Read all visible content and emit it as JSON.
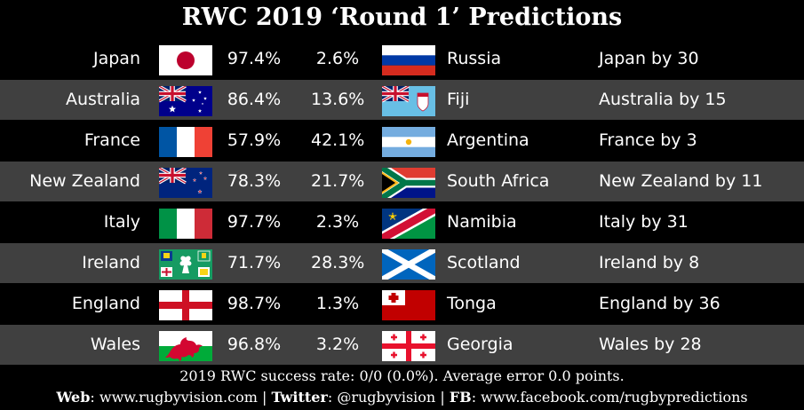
{
  "title": "RWC 2019 ‘Round 1’ Predictions",
  "matches": [
    {
      "home": "Japan",
      "home_flag": "japan-flag",
      "home_pct": "97.4%",
      "away_pct": "2.6%",
      "away": "Russia",
      "away_flag": "russia-flag",
      "prediction": "Japan by 30"
    },
    {
      "home": "Australia",
      "home_flag": "australia-flag",
      "home_pct": "86.4%",
      "away_pct": "13.6%",
      "away": "Fiji",
      "away_flag": "fiji-flag",
      "prediction": "Australia by 15"
    },
    {
      "home": "France",
      "home_flag": "france-flag",
      "home_pct": "57.9%",
      "away_pct": "42.1%",
      "away": "Argentina",
      "away_flag": "argentina-flag",
      "prediction": "France by 3"
    },
    {
      "home": "New Zealand",
      "home_flag": "new-zealand-flag",
      "home_pct": "78.3%",
      "away_pct": "21.7%",
      "away": "South Africa",
      "away_flag": "south-africa-flag",
      "prediction": "New Zealand by 11"
    },
    {
      "home": "Italy",
      "home_flag": "italy-flag",
      "home_pct": "97.7%",
      "away_pct": "2.3%",
      "away": "Namibia",
      "away_flag": "namibia-flag",
      "prediction": "Italy by 31"
    },
    {
      "home": "Ireland",
      "home_flag": "ireland-rugby-flag",
      "home_pct": "71.7%",
      "away_pct": "28.3%",
      "away": "Scotland",
      "away_flag": "scotland-flag",
      "prediction": "Ireland by 8"
    },
    {
      "home": "England",
      "home_flag": "england-flag",
      "home_pct": "98.7%",
      "away_pct": "1.3%",
      "away": "Tonga",
      "away_flag": "tonga-flag",
      "prediction": "England by 36"
    },
    {
      "home": "Wales",
      "home_flag": "wales-flag",
      "home_pct": "96.8%",
      "away_pct": "3.2%",
      "away": "Georgia",
      "away_flag": "georgia-flag",
      "prediction": "Wales by 28"
    }
  ],
  "footer": {
    "success_rate": "2019 RWC success rate: 0/0 (0.0%). Average error 0.0 points.",
    "web_label": "Web",
    "web_value": ": www.rugbyvision.com",
    "sep1": " | ",
    "twitter_label": "Twitter",
    "twitter_value": ": @rugbyvision",
    "sep2": " | ",
    "fb_label": "FB",
    "fb_value": ": www.facebook.com/rugbypredictions"
  },
  "colors": {
    "background": "#000000",
    "row_alt": "#404040",
    "text": "#ffffff"
  }
}
